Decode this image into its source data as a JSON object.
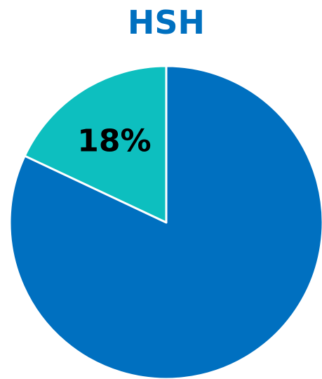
{
  "chart_data": {
    "type": "pie",
    "title": "HSH",
    "slices": [
      {
        "value": 82,
        "label": "",
        "color": "#0070C0"
      },
      {
        "value": 18,
        "label": "18%",
        "color": "#0DBFBF"
      }
    ],
    "legend": "none"
  },
  "colors": {
    "title": "#0070C0",
    "slice_border": "#ffffff"
  }
}
